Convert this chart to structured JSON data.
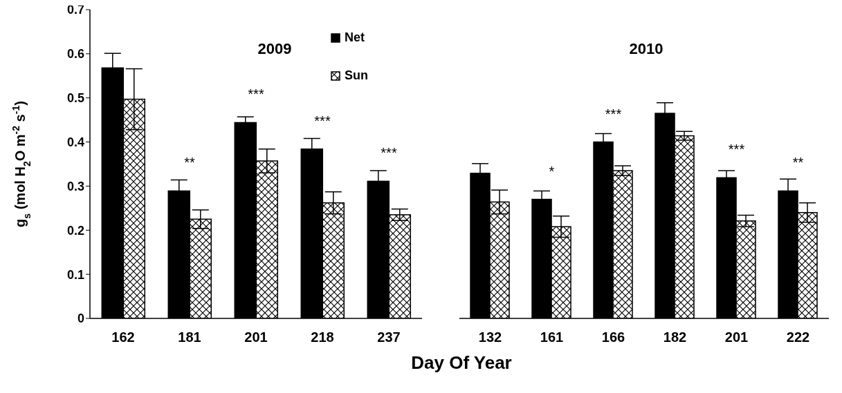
{
  "chart_data": [
    {
      "type": "bar",
      "title": "2009",
      "ylabel": "g$_{s}$ (mol H$_{2}$O m$^{-2}$ s$^{-1}$)",
      "xlabel": "Day Of Year",
      "categories": [
        "162",
        "181",
        "201",
        "218",
        "237"
      ],
      "series": [
        {
          "name": "Net",
          "color": "#000000",
          "values": [
            0.568,
            0.289,
            0.444,
            0.384,
            0.311
          ],
          "errors": [
            0.033,
            0.025,
            0.013,
            0.024,
            0.024
          ]
        },
        {
          "name": "Sun",
          "color": "#ffffff",
          "values": [
            0.497,
            0.225,
            0.357,
            0.262,
            0.235
          ],
          "errors": [
            0.069,
            0.021,
            0.027,
            0.025,
            0.013
          ]
        }
      ],
      "ylim": [
        0,
        0.7
      ],
      "yticks": [
        0,
        0.1,
        0.2,
        0.3,
        0.4,
        0.5,
        0.6,
        0.7
      ],
      "legend": "top right",
      "annotations": [
        {
          "text": "**",
          "x": "181",
          "y": 0.289
        },
        {
          "text": "***",
          "x": "201",
          "y": 0.444
        },
        {
          "text": "***",
          "x": "218",
          "y": 0.384
        },
        {
          "text": "***",
          "x": "237",
          "y": 0.311
        }
      ]
    },
    {
      "type": "bar",
      "title": "2010",
      "categories": [
        "132",
        "161",
        "166",
        "182",
        "201",
        "222"
      ],
      "series": [
        {
          "color": "#000000",
          "values": [
            0.329,
            0.27,
            0.4,
            0.465,
            0.319,
            0.289
          ],
          "errors": [
            0.022,
            0.019,
            0.019,
            0.024,
            0.016,
            0.027
          ]
        },
        {
          "color": "#ffffff",
          "values": [
            0.264,
            0.208,
            0.335,
            0.414,
            0.221,
            0.24
          ],
          "errors": [
            0.027,
            0.024,
            0.011,
            0.01,
            0.013,
            0.022
          ]
        }
      ],
      "ylim": [
        0,
        0.7
      ],
      "yticks": [
        0,
        0.1,
        0.2,
        0.3,
        0.4,
        0.5,
        0.6,
        0.7
      ],
      "tick_labels": "x",
      "annotations": [
        {
          "text": "*",
          "x": "161",
          "y": 0.27
        },
        {
          "text": "***",
          "x": "166",
          "y": 0.4
        },
        {
          "text": "***",
          "x": "201",
          "y": 0.319
        },
        {
          "text": "**",
          "x": "222",
          "y": 0.289
        }
      ]
    }
  ]
}
